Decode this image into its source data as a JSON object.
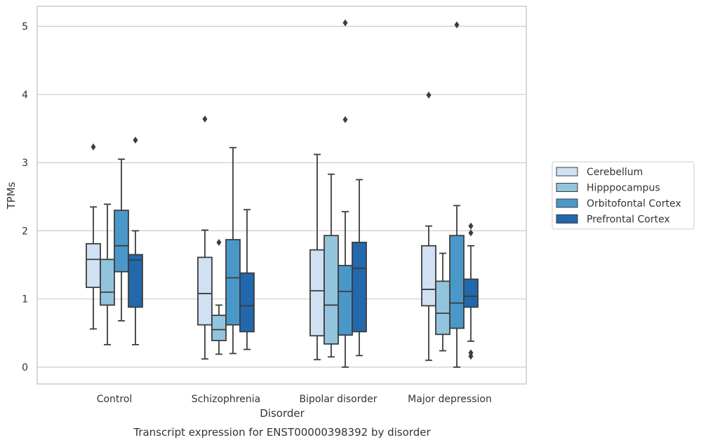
{
  "caption": "Transcript expression for ENST00000398392 by disorder",
  "colors": {
    "background": "#ffffff",
    "grid": "#cccccc",
    "frame": "#cccccc",
    "box_edge": "#3d3d3d",
    "series": [
      "#cfe1f2",
      "#93c4de",
      "#4a98c9",
      "#2268ac"
    ]
  },
  "chart_data": {
    "type": "box",
    "title": "",
    "xlabel": "Disorder",
    "ylabel": "TPMs",
    "categories": [
      "Control",
      "Schizophrenia",
      "Bipolar disorder",
      "Major depression"
    ],
    "ylim": [
      -0.25,
      5.3
    ],
    "yticks": [
      0,
      1,
      2,
      3,
      4,
      5
    ],
    "grid": "y",
    "legend_position": "right",
    "series": [
      {
        "name": "Cerebellum",
        "boxes": [
          {
            "whislo": 0.56,
            "q1": 1.17,
            "med": 1.58,
            "q3": 1.81,
            "whishi": 2.35,
            "fliers": [
              3.23
            ]
          },
          {
            "whislo": 0.12,
            "q1": 0.62,
            "med": 1.08,
            "q3": 1.61,
            "whishi": 2.01,
            "fliers": [
              3.64
            ]
          },
          {
            "whislo": 0.11,
            "q1": 0.46,
            "med": 1.12,
            "q3": 1.72,
            "whishi": 3.12,
            "fliers": []
          },
          {
            "whislo": 0.1,
            "q1": 0.9,
            "med": 1.14,
            "q3": 1.78,
            "whishi": 2.07,
            "fliers": [
              3.99
            ]
          }
        ]
      },
      {
        "name": "Hipppocampus",
        "boxes": [
          {
            "whislo": 0.33,
            "q1": 0.91,
            "med": 1.1,
            "q3": 1.58,
            "whishi": 2.39,
            "fliers": []
          },
          {
            "whislo": 0.19,
            "q1": 0.39,
            "med": 0.55,
            "q3": 0.76,
            "whishi": 0.91,
            "fliers": [
              1.83
            ]
          },
          {
            "whislo": 0.15,
            "q1": 0.34,
            "med": 0.91,
            "q3": 1.93,
            "whishi": 2.83,
            "fliers": []
          },
          {
            "whislo": 0.24,
            "q1": 0.48,
            "med": 0.79,
            "q3": 1.26,
            "whishi": 1.67,
            "fliers": []
          }
        ]
      },
      {
        "name": "Orbitofontal Cortex",
        "boxes": [
          {
            "whislo": 0.68,
            "q1": 1.4,
            "med": 1.78,
            "q3": 2.3,
            "whishi": 3.05,
            "fliers": []
          },
          {
            "whislo": 0.2,
            "q1": 0.62,
            "med": 1.31,
            "q3": 1.87,
            "whishi": 3.22,
            "fliers": []
          },
          {
            "whislo": 0.0,
            "q1": 0.47,
            "med": 1.11,
            "q3": 1.49,
            "whishi": 2.28,
            "fliers": [
              3.63,
              5.05
            ]
          },
          {
            "whislo": 0.0,
            "q1": 0.57,
            "med": 0.94,
            "q3": 1.93,
            "whishi": 2.37,
            "fliers": [
              5.02
            ]
          }
        ]
      },
      {
        "name": "Prefrontal Cortex",
        "boxes": [
          {
            "whislo": 0.33,
            "q1": 0.88,
            "med": 1.57,
            "q3": 1.65,
            "whishi": 2.0,
            "fliers": [
              3.33
            ]
          },
          {
            "whislo": 0.26,
            "q1": 0.52,
            "med": 0.9,
            "q3": 1.38,
            "whishi": 2.31,
            "fliers": []
          },
          {
            "whislo": 0.17,
            "q1": 0.52,
            "med": 1.45,
            "q3": 1.83,
            "whishi": 2.75,
            "fliers": []
          },
          {
            "whislo": 0.38,
            "q1": 0.88,
            "med": 1.04,
            "q3": 1.29,
            "whishi": 1.78,
            "fliers": [
              0.16,
              0.21,
              1.97,
              2.07
            ]
          }
        ]
      }
    ]
  }
}
